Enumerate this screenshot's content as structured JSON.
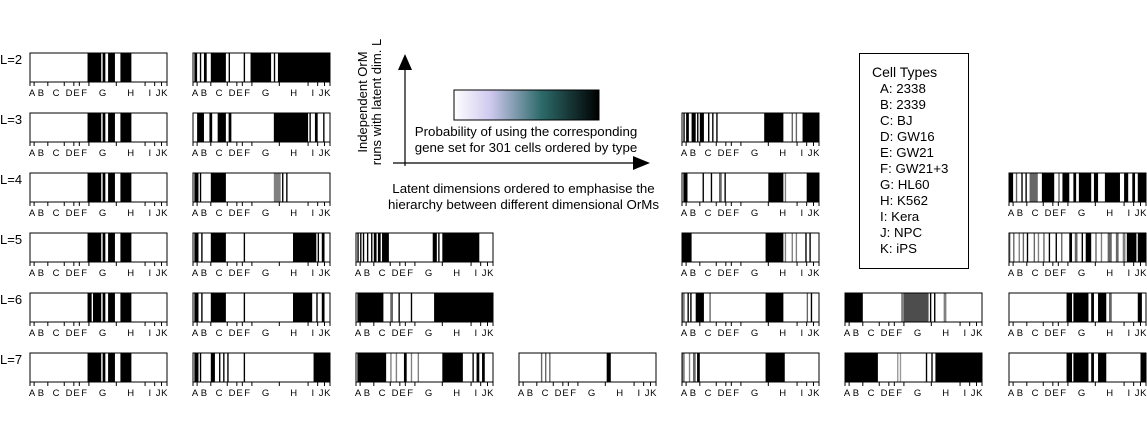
{
  "chart_data": {
    "type": "heatmap",
    "description_axes": {
      "y_arrow_label_line1": "Independent OrM",
      "y_arrow_label_line2": "runs with latent dim. L",
      "x_arrow_label_line1": "Latent dimensions ordered to emphasise the",
      "x_arrow_label_line2": "hierarchy between different dimensional OrMs",
      "colorbar_label_line1": "Probability of using the corresponding",
      "colorbar_label_line2": "gene set for 301 cells ordered by type"
    },
    "colorbar": {
      "colors": [
        "#ffffff",
        "#cfc9ef",
        "#2e6b6b",
        "#000000"
      ],
      "range": [
        0,
        1
      ]
    },
    "row_labels": [
      "L=2",
      "L=3",
      "L=4",
      "L=5",
      "L=6",
      "L=7"
    ],
    "tick_labels": [
      "A",
      "B",
      "C",
      "D",
      "E",
      "F",
      "G",
      "H",
      "I",
      "J",
      "K"
    ],
    "cell_type_boundaries": [
      0,
      0.03,
      0.13,
      0.25,
      0.32,
      0.36,
      0.43,
      0.63,
      0.84,
      0.91,
      0.96,
      1.0
    ],
    "legend": {
      "title": "Cell Types",
      "items": [
        "A: 2338",
        "B: 2339",
        "C: BJ",
        "D: GW16",
        "E: GW21",
        "F: GW21+3",
        "G: HL60",
        "H: K562",
        "I: Kera",
        "J: NPC",
        "K: iPS"
      ]
    },
    "panels": [
      {
        "row": 0,
        "col": 0,
        "segments": [
          [
            0.42,
            0.52,
            1
          ],
          [
            0.53,
            0.55,
            1
          ],
          [
            0.57,
            0.62,
            1
          ],
          [
            0.66,
            0.74,
            1
          ]
        ]
      },
      {
        "row": 0,
        "col": 1,
        "segments": [
          [
            0.01,
            0.03,
            1
          ],
          [
            0.05,
            0.06,
            1
          ],
          [
            0.08,
            0.1,
            1
          ],
          [
            0.13,
            0.24,
            1
          ],
          [
            0.26,
            0.27,
            1
          ],
          [
            0.37,
            0.38,
            1
          ],
          [
            0.42,
            0.57,
            1
          ],
          [
            0.59,
            0.6,
            1
          ],
          [
            0.62,
            1.0,
            1
          ]
        ]
      },
      {
        "row": 1,
        "col": 0,
        "segments": [
          [
            0.42,
            0.52,
            1
          ],
          [
            0.53,
            0.55,
            1
          ],
          [
            0.57,
            0.62,
            1
          ],
          [
            0.66,
            0.74,
            1
          ]
        ]
      },
      {
        "row": 1,
        "col": 1,
        "segments": [
          [
            0.03,
            0.08,
            1
          ],
          [
            0.12,
            0.14,
            1
          ],
          [
            0.18,
            0.24,
            1
          ],
          [
            0.26,
            0.28,
            1
          ],
          [
            0.59,
            0.84,
            1
          ],
          [
            0.85,
            0.86,
            1
          ],
          [
            0.89,
            0.91,
            1
          ],
          [
            0.95,
            0.96,
            1
          ]
        ]
      },
      {
        "row": 2,
        "col": 0,
        "segments": [
          [
            0.42,
            0.52,
            1
          ],
          [
            0.53,
            0.55,
            1
          ],
          [
            0.57,
            0.62,
            1
          ],
          [
            0.66,
            0.74,
            1
          ]
        ]
      },
      {
        "row": 2,
        "col": 1,
        "segments": [
          [
            0.01,
            0.04,
            1
          ],
          [
            0.05,
            0.06,
            1
          ],
          [
            0.13,
            0.24,
            1
          ],
          [
            0.59,
            0.64,
            0.5
          ],
          [
            0.65,
            0.66,
            1
          ],
          [
            0.68,
            0.69,
            1
          ]
        ]
      },
      {
        "row": 3,
        "col": 0,
        "segments": [
          [
            0.42,
            0.52,
            1
          ],
          [
            0.53,
            0.55,
            1
          ],
          [
            0.57,
            0.62,
            1
          ],
          [
            0.66,
            0.74,
            1
          ]
        ]
      },
      {
        "row": 3,
        "col": 1,
        "segments": [
          [
            0.01,
            0.04,
            1
          ],
          [
            0.06,
            0.07,
            1
          ],
          [
            0.13,
            0.24,
            1
          ],
          [
            0.37,
            0.38,
            1
          ],
          [
            0.73,
            0.9,
            1
          ],
          [
            0.91,
            0.92,
            1
          ],
          [
            0.94,
            0.96,
            1
          ]
        ]
      },
      {
        "row": 3,
        "col": 2,
        "segments": [
          [
            0.01,
            0.02,
            1
          ],
          [
            0.03,
            0.04,
            1
          ],
          [
            0.05,
            0.06,
            1
          ],
          [
            0.08,
            0.09,
            1
          ],
          [
            0.11,
            0.12,
            1
          ],
          [
            0.13,
            0.15,
            1
          ],
          [
            0.16,
            0.18,
            1
          ],
          [
            0.19,
            0.24,
            1
          ],
          [
            0.56,
            0.59,
            1
          ],
          [
            0.6,
            0.61,
            1
          ],
          [
            0.63,
            0.9,
            1
          ]
        ]
      },
      {
        "row": 4,
        "col": 0,
        "segments": [
          [
            0.42,
            0.45,
            1
          ],
          [
            0.46,
            0.52,
            1
          ],
          [
            0.53,
            0.55,
            1
          ],
          [
            0.57,
            0.62,
            1
          ],
          [
            0.66,
            0.74,
            1
          ]
        ]
      },
      {
        "row": 4,
        "col": 1,
        "segments": [
          [
            0.01,
            0.04,
            1
          ],
          [
            0.06,
            0.07,
            1
          ],
          [
            0.13,
            0.24,
            1
          ],
          [
            0.37,
            0.38,
            1
          ],
          [
            0.73,
            0.87,
            1
          ],
          [
            0.9,
            0.91,
            1
          ],
          [
            0.94,
            0.96,
            1
          ]
        ]
      },
      {
        "row": 4,
        "col": 2,
        "segments": [
          [
            0.01,
            0.2,
            1
          ],
          [
            0.25,
            0.27,
            0.6
          ],
          [
            0.31,
            0.32,
            1
          ],
          [
            0.4,
            0.41,
            1
          ],
          [
            0.57,
            1.0,
            1
          ]
        ]
      },
      {
        "row": 5,
        "col": 0,
        "segments": [
          [
            0.42,
            0.52,
            1
          ],
          [
            0.53,
            0.55,
            1
          ],
          [
            0.57,
            0.62,
            1
          ],
          [
            0.66,
            0.74,
            1
          ]
        ]
      },
      {
        "row": 5,
        "col": 1,
        "segments": [
          [
            0.01,
            0.04,
            1
          ],
          [
            0.05,
            0.06,
            1
          ],
          [
            0.13,
            0.16,
            1
          ],
          [
            0.19,
            0.2,
            1
          ],
          [
            0.22,
            0.23,
            1
          ],
          [
            0.25,
            0.26,
            1
          ],
          [
            0.37,
            0.38,
            1
          ],
          [
            0.88,
            1.0,
            1
          ]
        ]
      },
      {
        "row": 5,
        "col": 2,
        "segments": [
          [
            0.01,
            0.22,
            1
          ],
          [
            0.25,
            0.26,
            0.5
          ],
          [
            0.29,
            0.3,
            0.5
          ],
          [
            0.35,
            0.37,
            1
          ],
          [
            0.4,
            0.41,
            0.5
          ],
          [
            0.45,
            0.46,
            0.5
          ],
          [
            0.63,
            0.78,
            1
          ],
          [
            0.85,
            0.86,
            1
          ],
          [
            0.88,
            0.9,
            1
          ],
          [
            0.92,
            0.94,
            1
          ]
        ]
      },
      {
        "row": 5,
        "col": 3,
        "segments": [
          [
            0.16,
            0.17,
            0.6
          ],
          [
            0.19,
            0.2,
            0.6
          ],
          [
            0.22,
            0.23,
            0.6
          ],
          [
            0.64,
            0.67,
            1
          ]
        ]
      },
      {
        "row": 1,
        "col": 4,
        "segments": [
          [
            0.01,
            0.02,
            1
          ],
          [
            0.03,
            0.05,
            1
          ],
          [
            0.07,
            0.1,
            1
          ],
          [
            0.11,
            0.12,
            1
          ],
          [
            0.13,
            0.16,
            1
          ],
          [
            0.19,
            0.2,
            1
          ],
          [
            0.22,
            0.23,
            1
          ],
          [
            0.25,
            0.26,
            1
          ],
          [
            0.6,
            0.74,
            1
          ],
          [
            0.8,
            0.81,
            0.6
          ],
          [
            0.83,
            0.84,
            0.6
          ],
          [
            0.88,
            1.0,
            1
          ]
        ]
      },
      {
        "row": 2,
        "col": 4,
        "segments": [
          [
            0.01,
            0.04,
            1
          ],
          [
            0.15,
            0.16,
            1
          ],
          [
            0.21,
            0.22,
            1
          ],
          [
            0.27,
            0.29,
            0.6
          ],
          [
            0.31,
            0.32,
            1
          ],
          [
            0.63,
            0.74,
            1
          ],
          [
            0.75,
            0.76,
            0.5
          ],
          [
            0.91,
            1.0,
            1
          ]
        ]
      },
      {
        "row": 3,
        "col": 4,
        "segments": [
          [
            0.0,
            0.07,
            1
          ],
          [
            0.61,
            0.74,
            1
          ],
          [
            0.75,
            0.76,
            0.5
          ],
          [
            0.8,
            0.81,
            0.5
          ],
          [
            0.83,
            0.84,
            0.5
          ],
          [
            0.9,
            0.91,
            1
          ],
          [
            0.93,
            0.94,
            1
          ]
        ]
      },
      {
        "row": 4,
        "col": 4,
        "segments": [
          [
            0.0,
            0.02,
            0.5
          ],
          [
            0.04,
            0.05,
            1
          ],
          [
            0.06,
            0.07,
            1
          ],
          [
            0.1,
            0.16,
            1
          ],
          [
            0.2,
            0.21,
            0.6
          ],
          [
            0.61,
            0.74,
            1
          ],
          [
            0.91,
            0.92,
            0.6
          ],
          [
            0.94,
            0.95,
            1
          ]
        ]
      },
      {
        "row": 5,
        "col": 4,
        "segments": [
          [
            0.0,
            0.02,
            0.5
          ],
          [
            0.05,
            0.06,
            0.5
          ],
          [
            0.08,
            0.1,
            0.6
          ],
          [
            0.11,
            0.13,
            1
          ],
          [
            0.61,
            0.75,
            1
          ]
        ]
      },
      {
        "row": 4,
        "col": 5,
        "segments": [
          [
            0.0,
            0.13,
            1
          ],
          [
            0.41,
            0.43,
            0.5
          ],
          [
            0.43,
            0.61,
            0.7
          ],
          [
            0.62,
            0.63,
            1
          ],
          [
            0.65,
            0.66,
            1
          ],
          [
            0.72,
            0.74,
            0.5
          ]
        ]
      },
      {
        "row": 5,
        "col": 5,
        "segments": [
          [
            0.0,
            0.24,
            1
          ],
          [
            0.38,
            0.39,
            0.4
          ],
          [
            0.4,
            0.41,
            0.4
          ],
          [
            0.59,
            0.6,
            1
          ],
          [
            0.63,
            0.64,
            1
          ],
          [
            0.66,
            1.0,
            1
          ]
        ]
      },
      {
        "row": 2,
        "col": 6,
        "segments": [
          [
            0.0,
            0.03,
            1
          ],
          [
            0.05,
            0.06,
            0.6
          ],
          [
            0.09,
            0.1,
            1
          ],
          [
            0.12,
            0.13,
            1
          ],
          [
            0.15,
            0.21,
            0.6
          ],
          [
            0.24,
            0.33,
            1
          ],
          [
            0.36,
            0.37,
            0.6
          ],
          [
            0.39,
            0.44,
            1
          ],
          [
            0.47,
            0.49,
            1
          ],
          [
            0.51,
            0.6,
            1
          ],
          [
            0.62,
            0.65,
            1
          ],
          [
            0.7,
            0.81,
            1
          ],
          [
            0.84,
            0.87,
            1
          ],
          [
            0.9,
            0.92,
            1
          ],
          [
            0.94,
            1.0,
            1
          ]
        ]
      },
      {
        "row": 3,
        "col": 6,
        "segments": [
          [
            0.0,
            0.01,
            0.6
          ],
          [
            0.03,
            0.04,
            0.6
          ],
          [
            0.07,
            0.08,
            0.5
          ],
          [
            0.1,
            0.11,
            0.6
          ],
          [
            0.13,
            0.14,
            1
          ],
          [
            0.18,
            0.19,
            0.6
          ],
          [
            0.21,
            0.22,
            0.5
          ],
          [
            0.25,
            0.26,
            0.6
          ],
          [
            0.29,
            0.3,
            1
          ],
          [
            0.34,
            0.35,
            1
          ],
          [
            0.38,
            0.39,
            0.6
          ],
          [
            0.44,
            0.46,
            1
          ],
          [
            0.48,
            0.5,
            0.6
          ],
          [
            0.53,
            0.54,
            1
          ],
          [
            0.56,
            0.6,
            1
          ],
          [
            0.63,
            0.64,
            0.6
          ],
          [
            0.67,
            0.68,
            0.5
          ],
          [
            0.72,
            0.75,
            0.6
          ],
          [
            0.78,
            0.8,
            0.6
          ],
          [
            0.83,
            0.85,
            0.5
          ],
          [
            0.86,
            0.93,
            1
          ],
          [
            0.94,
            1.0,
            1
          ]
        ]
      },
      {
        "row": 4,
        "col": 6,
        "segments": [
          [
            0.42,
            0.46,
            1
          ],
          [
            0.47,
            0.58,
            1
          ],
          [
            0.6,
            0.62,
            1
          ],
          [
            0.65,
            0.71,
            1
          ],
          [
            0.73,
            0.75,
            0.6
          ],
          [
            0.94,
            0.97,
            1
          ]
        ]
      },
      {
        "row": 5,
        "col": 6,
        "segments": [
          [
            0.42,
            0.46,
            1
          ],
          [
            0.47,
            0.58,
            1
          ],
          [
            0.6,
            0.62,
            1
          ],
          [
            0.65,
            0.71,
            1
          ],
          [
            0.96,
            1.0,
            1
          ]
        ]
      }
    ]
  }
}
